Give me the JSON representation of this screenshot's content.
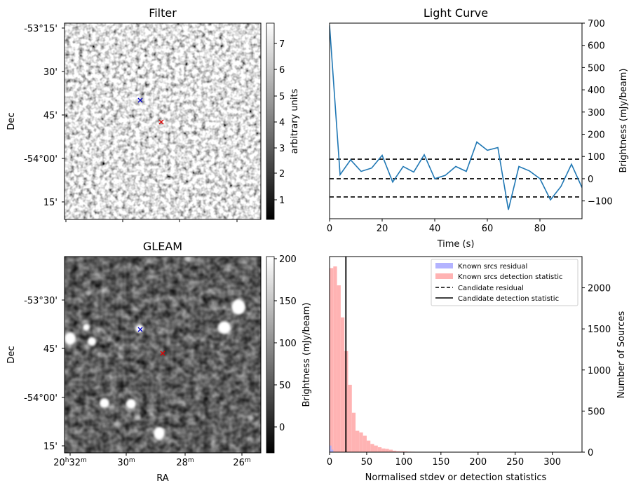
{
  "colors": {
    "line": "#1f77b4",
    "known_residual": "#b3b3ff",
    "known_detection": "#ffb3b3",
    "candidate_marker": "#dd0000",
    "known_marker": "#0000cc"
  },
  "panels": {
    "filter": {
      "title": "Filter",
      "ylabel": "Dec",
      "dec_ticks": [
        "-53°15'",
        "30'",
        "45'",
        "-54°00'",
        "15'"
      ],
      "colorbar_label": "arbitrary units",
      "colorbar_ticks": [
        "1",
        "2",
        "3",
        "4",
        "5",
        "6",
        "7"
      ]
    },
    "gleam": {
      "title": "GLEAM",
      "ylabel": "Dec",
      "xlabel": "RA",
      "dec_ticks": [
        "-53°30'",
        "45'",
        "-54°00'",
        "15'"
      ],
      "ra_ticks": [
        {
          "main": "20",
          "sup1": "h",
          "mid": "32",
          "sup2": "m"
        },
        {
          "main": "",
          "sup1": "",
          "mid": "30",
          "sup2": "m"
        },
        {
          "main": "",
          "sup1": "",
          "mid": "28",
          "sup2": "m"
        },
        {
          "main": "",
          "sup1": "",
          "mid": "26",
          "sup2": "m"
        }
      ],
      "colorbar_label": "Brightness (mJy/beam)",
      "colorbar_ticks": [
        "0",
        "50",
        "100",
        "150",
        "200"
      ]
    },
    "lightcurve": {
      "title": "Light Curve",
      "xlabel": "Time (s)",
      "ylabel": "Brightness (mJy/beam)"
    },
    "histogram": {
      "xlabel": "Normalised stdev or detection statistics",
      "ylabel": "Number of Sources",
      "legend": [
        {
          "label": "Known srcs residual",
          "style": "patch-blue"
        },
        {
          "label": "Known srcs detection statistic",
          "style": "patch-red"
        },
        {
          "label": "Candidate residual",
          "style": "dashed"
        },
        {
          "label": "Candidate detection statistic",
          "style": "solid"
        }
      ]
    }
  },
  "chart_data": [
    {
      "type": "line",
      "panel": "lightcurve",
      "title": "Light Curve",
      "xlabel": "Time (s)",
      "ylabel": "Brightness (mJy/beam)",
      "xlim": [
        0,
        96
      ],
      "ylim": [
        -180,
        700
      ],
      "xticks": [
        0,
        20,
        40,
        60,
        80
      ],
      "yticks": [
        -100,
        0,
        100,
        200,
        300,
        400,
        500,
        600,
        700
      ],
      "x": [
        0,
        4,
        8,
        12,
        16,
        20,
        24,
        28,
        32,
        36,
        40,
        44,
        48,
        52,
        56,
        60,
        64,
        68,
        72,
        76,
        80,
        84,
        88,
        92,
        96
      ],
      "y": [
        690,
        18,
        85,
        33,
        48,
        105,
        -15,
        55,
        30,
        108,
        0,
        15,
        55,
        33,
        165,
        128,
        140,
        -140,
        55,
        35,
        0,
        -95,
        -35,
        65,
        -40
      ],
      "hlines": [
        {
          "y": 88,
          "style": "dashed"
        },
        {
          "y": 0,
          "style": "dashed"
        },
        {
          "y": -82,
          "style": "dashed"
        }
      ]
    },
    {
      "type": "bar",
      "panel": "histogram",
      "xlabel": "Normalised stdev or detection statistics",
      "ylabel": "Number of Sources",
      "xlim": [
        0,
        340
      ],
      "ylim": [
        0,
        2380
      ],
      "xticks": [
        0,
        50,
        100,
        150,
        200,
        250,
        300
      ],
      "yticks": [
        0,
        500,
        1000,
        1500,
        2000
      ],
      "bin_width": 5,
      "series": [
        {
          "name": "Known srcs detection statistic",
          "bin_starts": [
            0,
            5,
            10,
            15,
            20,
            25,
            30,
            35,
            40,
            45,
            50,
            55,
            60,
            65,
            70,
            75,
            80,
            85,
            90,
            95,
            100,
            105,
            110,
            115,
            120,
            125,
            130,
            135,
            140,
            145,
            150,
            155,
            160,
            165,
            170,
            175,
            180,
            185,
            190,
            195,
            200,
            205,
            210,
            215,
            220,
            225,
            230,
            235,
            240,
            245,
            250,
            255,
            260,
            265,
            270,
            275,
            280,
            285,
            290,
            295,
            300,
            305,
            310,
            315
          ],
          "values": [
            2240,
            2260,
            2030,
            1640,
            1230,
            820,
            480,
            260,
            240,
            200,
            140,
            100,
            80,
            60,
            45,
            40,
            30,
            18,
            12,
            10,
            9,
            6,
            5,
            4,
            3,
            2,
            2,
            2,
            1,
            1,
            1,
            1,
            1,
            1,
            1,
            1,
            1,
            1,
            1,
            1,
            1,
            1,
            1,
            1,
            1,
            1,
            1,
            1,
            1,
            1,
            1,
            1,
            1,
            1,
            1,
            1,
            1,
            1,
            1,
            1,
            1,
            1,
            1,
            1
          ]
        },
        {
          "name": "Known srcs residual",
          "bin_starts": [
            0,
            2.5,
            5
          ],
          "values": [
            80,
            30,
            5
          ]
        }
      ],
      "vlines": [
        {
          "x": 22,
          "style": "solid",
          "name": "Candidate detection statistic"
        }
      ]
    }
  ]
}
